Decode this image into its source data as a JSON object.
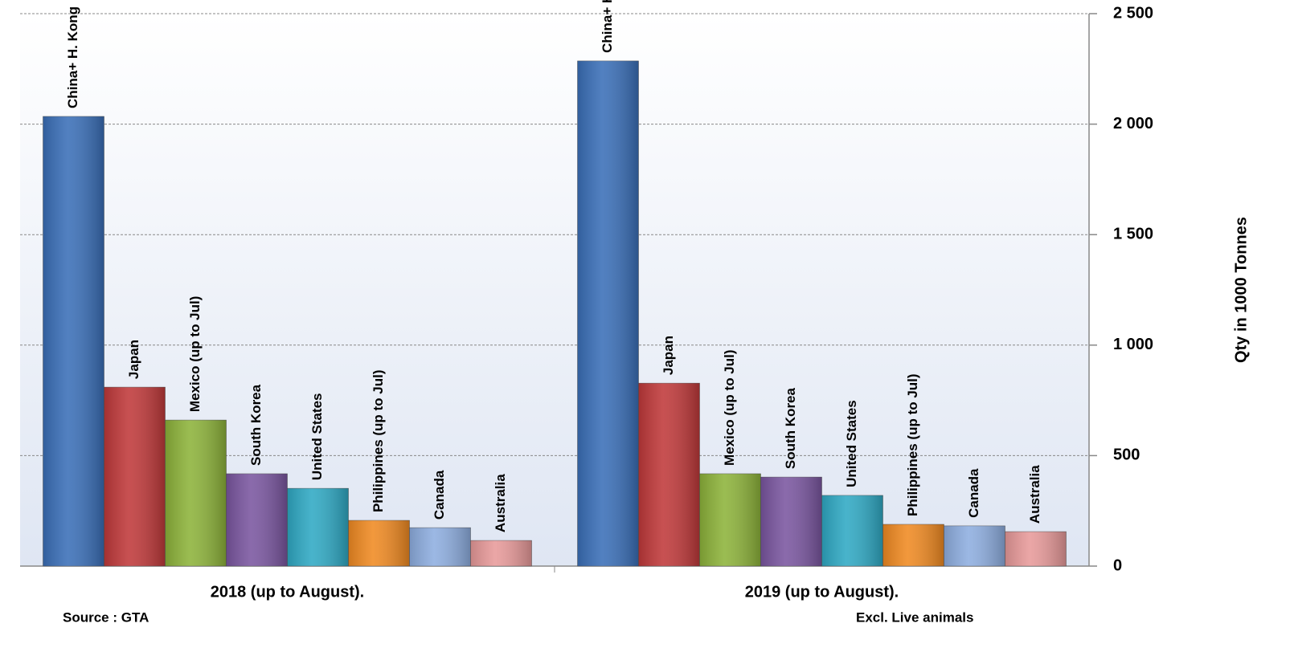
{
  "chart_data": {
    "type": "bar",
    "categories": [
      "2018 (up to August).",
      "2019 (up to August)."
    ],
    "series": [
      {
        "name": "China+ H. Kong",
        "color": "#3a6fb8",
        "values": [
          2035,
          2286
        ]
      },
      {
        "name": "Japan",
        "color": "#c0393a",
        "values": [
          810,
          828
        ]
      },
      {
        "name": "Mexico (up to Jul)",
        "color": "#8db33a",
        "values": [
          661,
          418
        ]
      },
      {
        "name": "South Korea",
        "color": "#7a56a0",
        "values": [
          418,
          403
        ]
      },
      {
        "name": "United States",
        "color": "#2fa9c4",
        "values": [
          352,
          320
        ]
      },
      {
        "name": "Philippines (up to Jul)",
        "color": "#f08a22",
        "values": [
          207,
          189
        ]
      },
      {
        "name": "Canada",
        "color": "#8eaee0",
        "values": [
          174,
          182
        ]
      },
      {
        "name": "Australia",
        "color": "#e89a9a",
        "values": [
          116,
          156
        ]
      }
    ],
    "ylabel": "Qty in 1000 Tonnes",
    "ylim": [
      0,
      2500
    ],
    "yticks": [
      0,
      500,
      {
        "value": 1000,
        "label": "1 000"
      },
      {
        "value": 1500,
        "label": "1 500"
      },
      {
        "value": 2000,
        "label": "2 000"
      },
      {
        "value": 2500,
        "label": "2 500"
      }
    ],
    "y_axis_side": "right",
    "grid": true,
    "annotations": [
      "Source : GTA",
      "Excl. Live animals"
    ]
  }
}
